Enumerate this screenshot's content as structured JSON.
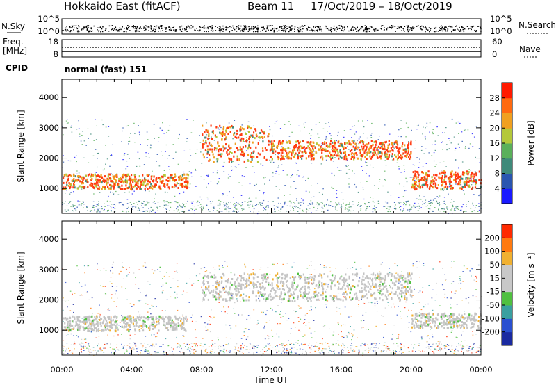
{
  "header": {
    "radar": "Hokkaido East (fitACF)",
    "beam": "Beam 11",
    "dates": "17/Oct/2019 – 18/Oct/2019"
  },
  "strips": {
    "nsky_label": "N.Sky",
    "nsky_ticks": [
      "10^5",
      "10^0"
    ],
    "nsearch_label": "N.Search",
    "nsearch_ticks": [
      "10^5",
      "10^0"
    ],
    "freq_label_1": "Freq.",
    "freq_label_2": "[MHz]",
    "freq_ticks": [
      "18",
      "8"
    ],
    "nave_label": "Nave",
    "nave_ticks": [
      "60",
      "0"
    ],
    "cpid_label": "CPID",
    "cpid_value": "normal (fast) 151"
  },
  "chart_data": [
    {
      "type": "heatmap",
      "title": "",
      "xlabel": "Time UT",
      "ylabel": "Slant Range [km]",
      "xlim": [
        "00:00",
        "24:00"
      ],
      "ylim": [
        180,
        4600
      ],
      "x_ticks": [
        "00:00",
        "04:00",
        "08:00",
        "12:00",
        "16:00",
        "20:00",
        "00:00"
      ],
      "y_ticks": [
        1000,
        2000,
        3000,
        4000
      ],
      "colorbar": {
        "label": "Power [dB]",
        "ticks": [
          4,
          8,
          12,
          16,
          20,
          24,
          28
        ],
        "range": [
          0,
          32
        ],
        "colors": [
          "#1a1aff",
          "#2a55b0",
          "#3f8a7a",
          "#5ab05a",
          "#b4c83a",
          "#f0a020",
          "#ff6a10",
          "#ff1a00"
        ]
      },
      "features": [
        {
          "name": "main band",
          "t_start_h": 0.0,
          "t_end_h": 7.2,
          "range_km": [
            1000,
            1500
          ],
          "power_db": 28
        },
        {
          "name": "upper band",
          "t_start_h": 8.0,
          "t_end_h": 11.8,
          "range_km": [
            1900,
            3100
          ],
          "power_db": 24
        },
        {
          "name": "upper band",
          "t_start_h": 11.8,
          "t_end_h": 20.0,
          "range_km": [
            2000,
            2600
          ],
          "power_db": 24
        },
        {
          "name": "main band",
          "t_start_h": 20.0,
          "t_end_h": 24.0,
          "range_km": [
            1000,
            1600
          ],
          "power_db": 28
        }
      ]
    },
    {
      "type": "heatmap",
      "title": "",
      "xlabel": "Time UT",
      "ylabel": "Slant Range [km]",
      "xlim": [
        "00:00",
        "24:00"
      ],
      "ylim": [
        180,
        4600
      ],
      "x_ticks": [
        "00:00",
        "04:00",
        "08:00",
        "12:00",
        "16:00",
        "20:00",
        "00:00"
      ],
      "y_ticks": [
        1000,
        2000,
        3000,
        4000
      ],
      "colorbar": {
        "label": "Velocity [m s⁻¹]",
        "ticks": [
          "200",
          "100",
          "50",
          "15",
          "-15",
          "-50",
          "-100",
          "-200"
        ],
        "range": [
          -250,
          250
        ],
        "colors": [
          "#1a2aa0",
          "#2a50d0",
          "#3aa0a0",
          "#50c040",
          "#c8c8c8",
          "#c8c8c8",
          "#f0b030",
          "#ff7a10",
          "#ff2a00"
        ]
      },
      "features": [
        {
          "name": "ground scatter",
          "t_start_h": 0.0,
          "t_end_h": 7.2,
          "range_km": [
            1000,
            1500
          ],
          "velocity_ms": 0
        },
        {
          "name": "ground scatter",
          "t_start_h": 8.0,
          "t_end_h": 20.0,
          "range_km": [
            2000,
            2900
          ],
          "velocity_ms": 0
        },
        {
          "name": "ground scatter",
          "t_start_h": 20.0,
          "t_end_h": 24.0,
          "range_km": [
            1100,
            1600
          ],
          "velocity_ms": 0
        }
      ]
    }
  ]
}
